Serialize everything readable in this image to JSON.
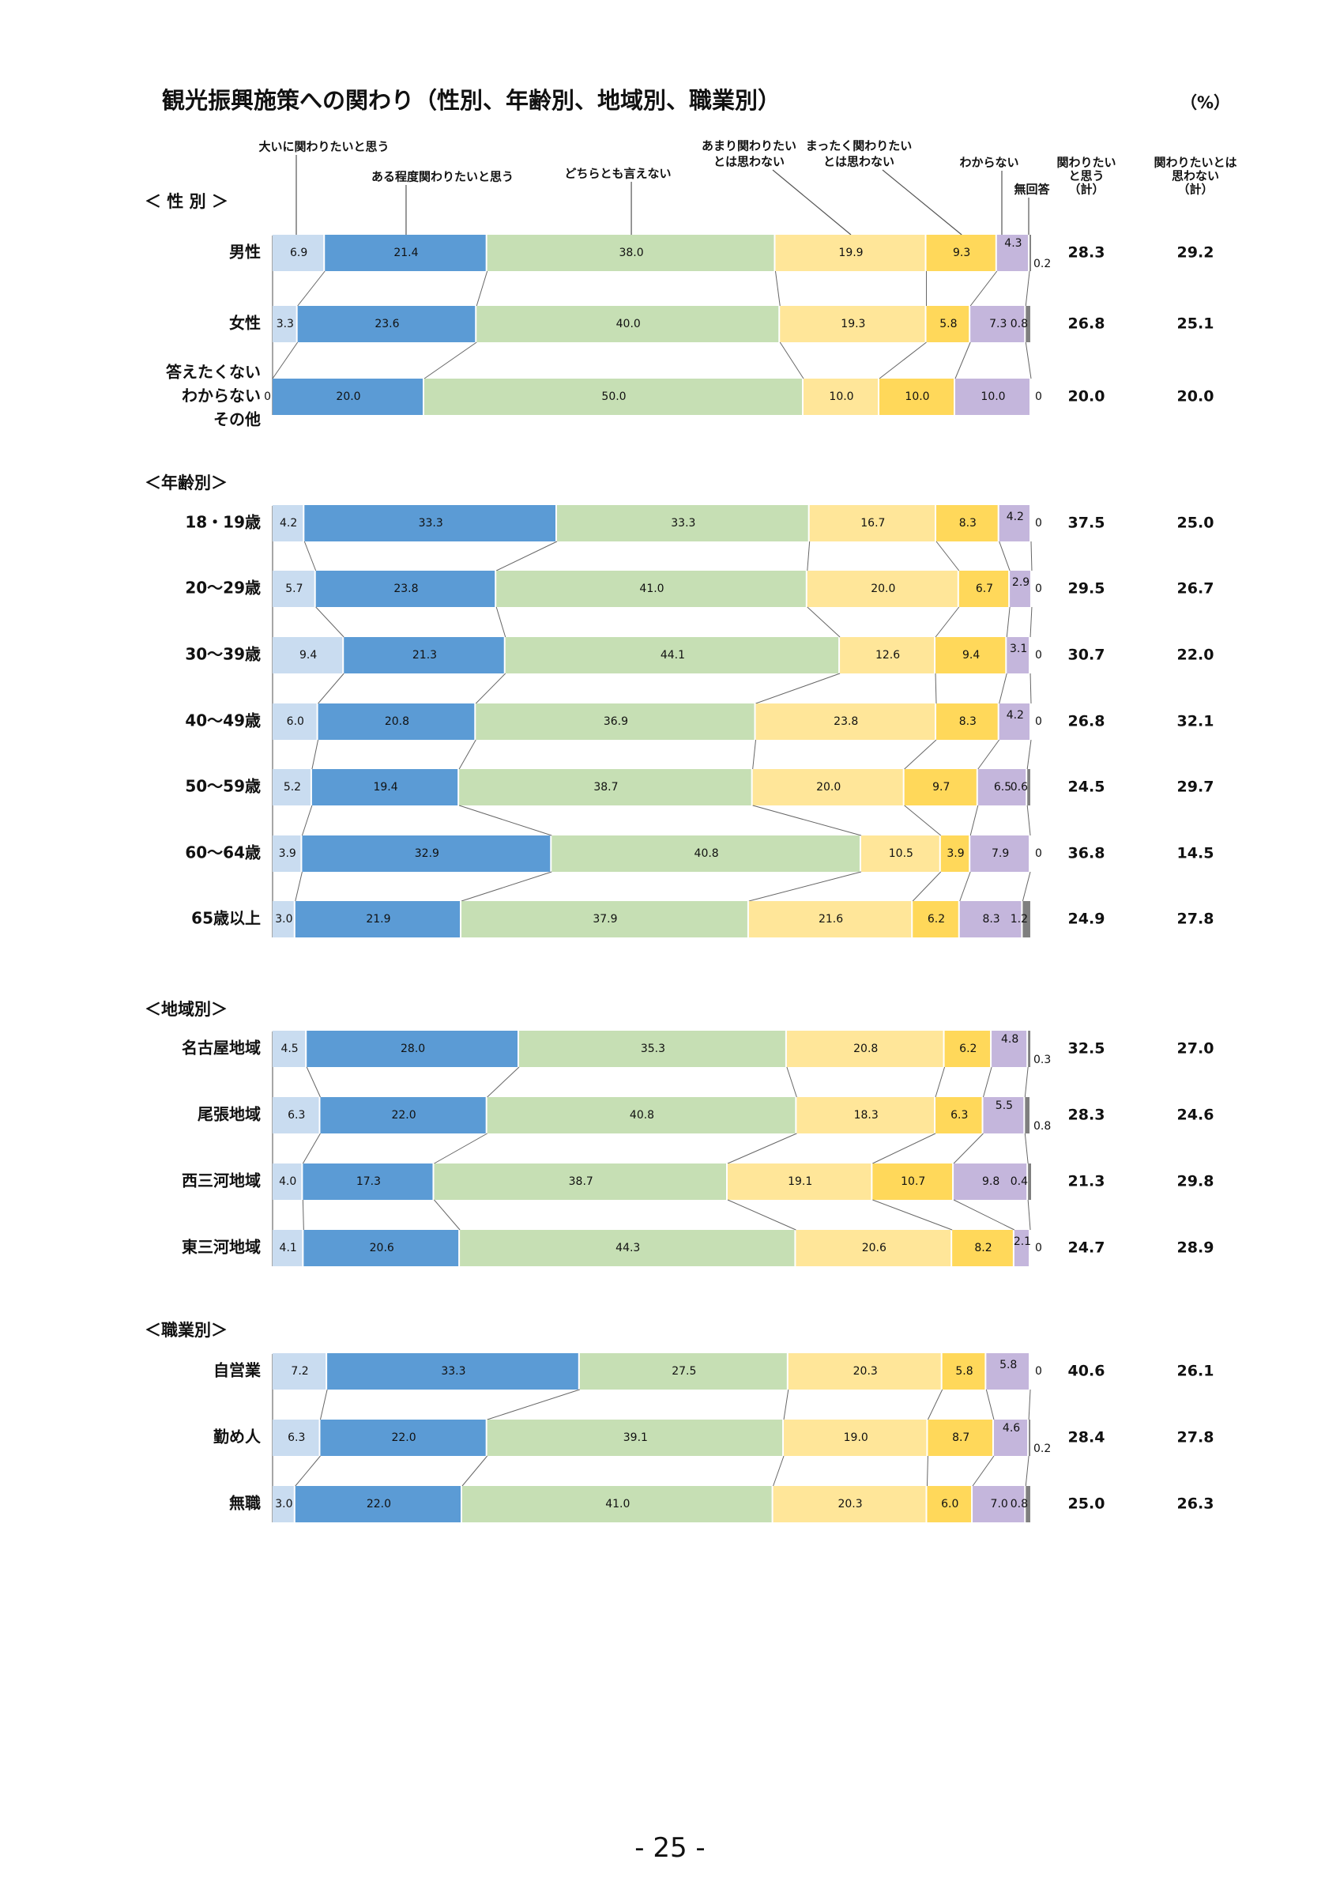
{
  "title": "観光振興施策への関わり（性別、年齢別、地域別、職業別）",
  "unit": "（%）",
  "page_number": "- 25 -",
  "chart_data": {
    "type": "bar",
    "orientation": "horizontal-stacked-100",
    "title": "観光振興施策への関わり（性別、年齢別、地域別、職業別）",
    "unit": "（%）",
    "series_names": [
      "大いに関わりたいと思う",
      "ある程度関わりたいと思う",
      "どちらとも言えない",
      "あまり関わりたいとは思わない",
      "まったく関わりたいとは思わない",
      "わからない",
      "無回答"
    ],
    "legend_lines": [
      [
        "大いに関わりたいと思う"
      ],
      [
        "ある程度関わりたいと思う"
      ],
      [
        "どちらとも言えない"
      ],
      [
        "あまり関わりたい",
        "とは思わない"
      ],
      [
        "まったく関わりたい",
        "とは思わない"
      ],
      [
        "わからない"
      ],
      [
        "無回答"
      ]
    ],
    "colors": [
      "#c9dcf0",
      "#5b9bd5",
      "#c6dfb4",
      "#ffe699",
      "#ffd85a",
      "#c4b6dc",
      "#7f7f7f"
    ],
    "summary_headers": [
      [
        "関わりたい",
        "と思う",
        "（計）"
      ],
      [
        "関わりたいとは",
        "思わない",
        "（計）"
      ]
    ],
    "sections": [
      {
        "label": "＜ 性 別 ＞",
        "rows": [
          {
            "label": [
              "男性"
            ],
            "values": [
              6.9,
              21.4,
              38.0,
              19.9,
              9.3,
              4.3,
              0.2
            ],
            "value_labels": [
              "6.9",
              "21.4",
              "38.0",
              "19.9",
              "9.3",
              "4.3",
              "0.2"
            ],
            "sum_positive": "28.3",
            "sum_negative": "29.2"
          },
          {
            "label": [
              "女性"
            ],
            "values": [
              3.3,
              23.6,
              40.0,
              19.3,
              5.8,
              7.3,
              0.8
            ],
            "value_labels": [
              "3.3",
              "23.6",
              "40.0",
              "19.3",
              "5.8",
              "7.3",
              "0.8"
            ],
            "sum_positive": "26.8",
            "sum_negative": "25.1"
          },
          {
            "label": [
              "答えたくない",
              "わからない",
              "その他"
            ],
            "values": [
              0,
              20.0,
              50.0,
              10.0,
              10.0,
              10.0,
              0
            ],
            "value_labels": [
              "0",
              "20.0",
              "50.0",
              "10.0",
              "10.0",
              "10.0",
              "0"
            ],
            "sum_positive": "20.0",
            "sum_negative": "20.0"
          }
        ]
      },
      {
        "label": "＜年齢別＞",
        "rows": [
          {
            "label": [
              "18・19歳"
            ],
            "values": [
              4.2,
              33.3,
              33.3,
              16.7,
              8.3,
              4.2,
              0
            ],
            "value_labels": [
              "4.2",
              "33.3",
              "33.3",
              "16.7",
              "8.3",
              "4.2",
              "0"
            ],
            "sum_positive": "37.5",
            "sum_negative": "25.0"
          },
          {
            "label": [
              "20～29歳"
            ],
            "values": [
              5.7,
              23.8,
              41.0,
              20.0,
              6.7,
              2.9,
              0
            ],
            "value_labels": [
              "5.7",
              "23.8",
              "41.0",
              "20.0",
              "6.7",
              "2.9",
              "0"
            ],
            "sum_positive": "29.5",
            "sum_negative": "26.7"
          },
          {
            "label": [
              "30～39歳"
            ],
            "values": [
              9.4,
              21.3,
              44.1,
              12.6,
              9.4,
              3.1,
              0
            ],
            "value_labels": [
              "9.4",
              "21.3",
              "44.1",
              "12.6",
              "9.4",
              "3.1",
              "0"
            ],
            "sum_positive": "30.7",
            "sum_negative": "22.0"
          },
          {
            "label": [
              "40～49歳"
            ],
            "values": [
              6.0,
              20.8,
              36.9,
              23.8,
              8.3,
              4.2,
              0
            ],
            "value_labels": [
              "6.0",
              "20.8",
              "36.9",
              "23.8",
              "8.3",
              "4.2",
              "0"
            ],
            "sum_positive": "26.8",
            "sum_negative": "32.1"
          },
          {
            "label": [
              "50～59歳"
            ],
            "values": [
              5.2,
              19.4,
              38.7,
              20.0,
              9.7,
              6.5,
              0.6
            ],
            "value_labels": [
              "5.2",
              "19.4",
              "38.7",
              "20.0",
              "9.7",
              "6.5",
              "0.6"
            ],
            "sum_positive": "24.5",
            "sum_negative": "29.7"
          },
          {
            "label": [
              "60～64歳"
            ],
            "values": [
              3.9,
              32.9,
              40.8,
              10.5,
              3.9,
              7.9,
              0
            ],
            "value_labels": [
              "3.9",
              "32.9",
              "40.8",
              "10.5",
              "3.9",
              "7.9",
              "0"
            ],
            "sum_positive": "36.8",
            "sum_negative": "14.5"
          },
          {
            "label": [
              "65歳以上"
            ],
            "values": [
              3.0,
              21.9,
              37.9,
              21.6,
              6.2,
              8.3,
              1.2
            ],
            "value_labels": [
              "3.0",
              "21.9",
              "37.9",
              "21.6",
              "6.2",
              "8.3",
              "1.2"
            ],
            "sum_positive": "24.9",
            "sum_negative": "27.8"
          }
        ]
      },
      {
        "label": "＜地域別＞",
        "rows": [
          {
            "label": [
              "名古屋地域"
            ],
            "values": [
              4.5,
              28.0,
              35.3,
              20.8,
              6.2,
              4.8,
              0.3
            ],
            "value_labels": [
              "4.5",
              "28.0",
              "35.3",
              "20.8",
              "6.2",
              "4.8",
              "0.3"
            ],
            "sum_positive": "32.5",
            "sum_negative": "27.0"
          },
          {
            "label": [
              "尾張地域"
            ],
            "values": [
              6.3,
              22.0,
              40.8,
              18.3,
              6.3,
              5.5,
              0.8
            ],
            "value_labels": [
              "6.3",
              "22.0",
              "40.8",
              "18.3",
              "6.3",
              "5.5",
              "0.8"
            ],
            "sum_positive": "28.3",
            "sum_negative": "24.6"
          },
          {
            "label": [
              "西三河地域"
            ],
            "values": [
              4.0,
              17.3,
              38.7,
              19.1,
              10.7,
              9.8,
              0.4
            ],
            "value_labels": [
              "4.0",
              "17.3",
              "38.7",
              "19.1",
              "10.7",
              "9.8",
              "0.4"
            ],
            "sum_positive": "21.3",
            "sum_negative": "29.8"
          },
          {
            "label": [
              "東三河地域"
            ],
            "values": [
              4.1,
              20.6,
              44.3,
              20.6,
              8.2,
              2.1,
              0
            ],
            "value_labels": [
              "4.1",
              "20.6",
              "44.3",
              "20.6",
              "8.2",
              "2.1",
              "0"
            ],
            "sum_positive": "24.7",
            "sum_negative": "28.9"
          }
        ]
      },
      {
        "label": "＜職業別＞",
        "rows": [
          {
            "label": [
              "自営業"
            ],
            "values": [
              7.2,
              33.3,
              27.5,
              20.3,
              5.8,
              5.8,
              0
            ],
            "value_labels": [
              "7.2",
              "33.3",
              "27.5",
              "20.3",
              "5.8",
              "5.8",
              "0"
            ],
            "sum_positive": "40.6",
            "sum_negative": "26.1"
          },
          {
            "label": [
              "勤め人"
            ],
            "values": [
              6.3,
              22.0,
              39.1,
              19.0,
              8.7,
              4.6,
              0.2
            ],
            "value_labels": [
              "6.3",
              "22.0",
              "39.1",
              "19.0",
              "8.7",
              "4.6",
              "0.2"
            ],
            "sum_positive": "28.4",
            "sum_negative": "27.8"
          },
          {
            "label": [
              "無職"
            ],
            "values": [
              3.0,
              22.0,
              41.0,
              20.3,
              6.0,
              7.0,
              0.8
            ],
            "value_labels": [
              "3.0",
              "22.0",
              "41.0",
              "20.3",
              "6.0",
              "7.0",
              "0.8"
            ],
            "sum_positive": "25.0",
            "sum_negative": "26.3"
          }
        ]
      }
    ]
  }
}
